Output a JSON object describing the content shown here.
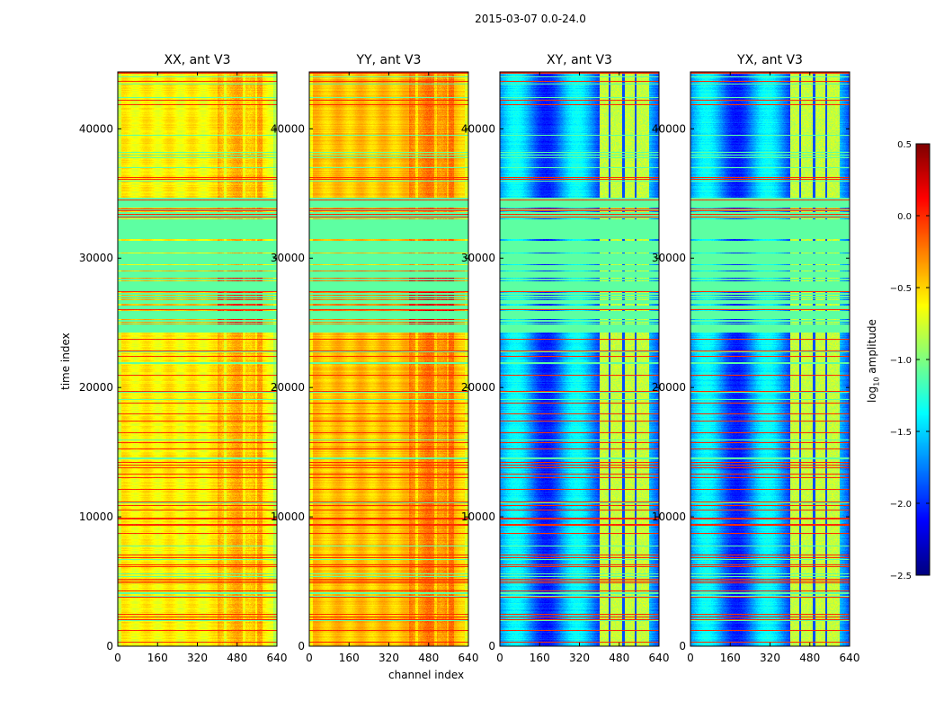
{
  "suptitle": "2015-03-07 0.0-24.0",
  "chart_data": {
    "type": "heatmap",
    "title": "2015-03-07 0.0-24.0",
    "panels": [
      {
        "title": "XX, ant V3",
        "polarization": "XX",
        "base_level": -0.6
      },
      {
        "title": "YY, ant V3",
        "polarization": "YY",
        "base_level": -0.45
      },
      {
        "title": "XY, ant V3",
        "polarization": "XY",
        "base_level": -1.7
      },
      {
        "title": "YX, ant V3",
        "polarization": "YX",
        "base_level": -1.7
      }
    ],
    "xlabel": "channel index",
    "ylabel": "time index",
    "xlim": [
      0,
      640
    ],
    "ylim": [
      0,
      44400
    ],
    "xticks": [
      0,
      160,
      320,
      480,
      640
    ],
    "xtick_labels": [
      "0",
      "160",
      "320",
      "480",
      "640"
    ],
    "yticks": [
      0,
      10000,
      20000,
      30000,
      40000
    ],
    "ytick_labels": [
      "0",
      "10000",
      "20000",
      "30000",
      "40000"
    ],
    "colorbar": {
      "label_main": "log",
      "label_sub": "10",
      "label_rest": " amplitude",
      "range": [
        -2.5,
        0.5
      ],
      "ticks": [
        0.5,
        0.0,
        -0.5,
        -1.0,
        -1.5,
        -2.0,
        -2.5
      ],
      "tick_labels": [
        "0.5",
        "0.0",
        "−0.5",
        "−1.0",
        "−1.5",
        "−2.0",
        "−2.5"
      ],
      "colormap": "jet"
    },
    "features": {
      "flagged_band_time": [
        24300,
        34700
      ],
      "rfi_channel_range": [
        400,
        600
      ],
      "flagged_row_value": -1.1,
      "rfi_row_value": 0.0
    },
    "grid": false
  }
}
